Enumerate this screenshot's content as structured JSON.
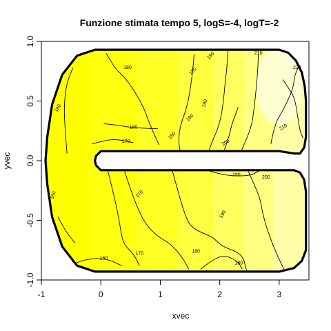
{
  "chart_data": {
    "type": "contour",
    "title": "Funzione stimata tempo 5, logS=-4, logT=-2",
    "xlabel": "xvec",
    "ylabel": "yvec",
    "xlim": [
      -1.0,
      3.5
    ],
    "ylim": [
      -1.0,
      1.0
    ],
    "x_ticks": [
      -1,
      0,
      1,
      2,
      3
    ],
    "x_tick_labels": [
      "-1",
      "0",
      "1",
      "2",
      "3"
    ],
    "y_ticks": [
      -1.0,
      -0.5,
      0.0,
      0.5,
      1.0
    ],
    "y_tick_labels": [
      "-1.0",
      "-0.5",
      "0.0",
      "0.5",
      "1.0"
    ],
    "colors": {
      "low": "#ffff00",
      "high": "#ffffe0",
      "boundary": "#000000",
      "contour": "#000000"
    },
    "fill_bands": [
      {
        "x_from": -1.0,
        "x_to": -0.2,
        "color": "#ffff00"
      },
      {
        "x_from": -0.2,
        "x_to": 0.6,
        "color": "#ffff10"
      },
      {
        "x_from": 0.6,
        "x_to": 1.3,
        "color": "#ffff26"
      },
      {
        "x_from": 1.3,
        "x_to": 1.9,
        "color": "#ffff40"
      },
      {
        "x_from": 1.9,
        "x_to": 2.4,
        "color": "#ffff60"
      },
      {
        "x_from": 2.4,
        "x_to": 2.9,
        "color": "#ffff82"
      },
      {
        "x_from": 2.9,
        "x_to": 3.5,
        "color": "#ffffa8"
      }
    ],
    "highlight_region": {
      "x_from": 2.6,
      "x_to": 3.4,
      "y_from": 0.3,
      "y_to": 0.95,
      "color": "#ffffd8"
    },
    "domain_boundary": [
      [
        -0.1,
        0.93
      ],
      [
        3.0,
        0.93
      ],
      [
        3.15,
        0.905
      ],
      [
        3.28,
        0.84
      ],
      [
        3.38,
        0.74
      ],
      [
        3.43,
        0.62
      ],
      [
        3.45,
        0.5
      ],
      [
        3.45,
        0.2
      ],
      [
        3.42,
        0.11
      ],
      [
        3.35,
        0.06
      ],
      [
        3.25,
        0.06
      ],
      [
        3.0,
        0.08
      ],
      [
        0.0,
        0.08
      ],
      [
        -0.08,
        0.04
      ],
      [
        -0.1,
        0.0
      ],
      [
        -0.08,
        -0.04
      ],
      [
        0.0,
        -0.08
      ],
      [
        3.0,
        -0.08
      ],
      [
        3.25,
        -0.08
      ],
      [
        3.35,
        -0.1
      ],
      [
        3.42,
        -0.16
      ],
      [
        3.45,
        -0.26
      ],
      [
        3.45,
        -0.75
      ],
      [
        3.38,
        -0.84
      ],
      [
        3.25,
        -0.9
      ],
      [
        3.0,
        -0.93
      ],
      [
        -0.1,
        -0.93
      ],
      [
        -0.4,
        -0.88
      ],
      [
        -0.65,
        -0.72
      ],
      [
        -0.82,
        -0.47
      ],
      [
        -0.9,
        -0.2
      ],
      [
        -0.93,
        0.0
      ],
      [
        -0.9,
        0.2
      ],
      [
        -0.82,
        0.47
      ],
      [
        -0.65,
        0.72
      ],
      [
        -0.4,
        0.88
      ],
      [
        -0.1,
        0.93
      ]
    ],
    "contours": [
      {
        "level": 160,
        "points": [
          [
            -0.57,
            0.06
          ],
          [
            -0.6,
            0.25
          ],
          [
            -0.62,
            0.46
          ],
          [
            -0.58,
            0.64
          ],
          [
            -0.47,
            0.78
          ]
        ]
      },
      {
        "level": 160,
        "points": [
          [
            -0.72,
            -0.47
          ],
          [
            -0.64,
            -0.55
          ],
          [
            -0.52,
            -0.64
          ],
          [
            -0.43,
            -0.69
          ]
        ]
      },
      {
        "level": 160,
        "points": [
          [
            -0.48,
            -0.87
          ],
          [
            -0.25,
            -0.82
          ],
          [
            0.1,
            -0.82
          ],
          [
            0.35,
            -0.88
          ]
        ]
      },
      {
        "level": 170,
        "points": [
          [
            -0.15,
            0.14
          ],
          [
            0.07,
            0.17
          ],
          [
            0.27,
            0.18
          ],
          [
            0.55,
            0.15
          ]
        ]
      },
      {
        "level": 170,
        "points": [
          [
            0.12,
            -0.09
          ],
          [
            0.2,
            -0.25
          ],
          [
            0.27,
            -0.4
          ],
          [
            0.33,
            -0.57
          ],
          [
            0.38,
            -0.7
          ],
          [
            0.55,
            -0.78
          ],
          [
            0.65,
            -0.88
          ]
        ]
      },
      {
        "level": 180,
        "points": [
          [
            0.09,
            0.9
          ],
          [
            0.24,
            0.77
          ],
          [
            0.36,
            0.72
          ],
          [
            0.52,
            0.62
          ],
          [
            0.72,
            0.45
          ],
          [
            0.8,
            0.33
          ],
          [
            0.98,
            0.13
          ]
        ]
      },
      {
        "level": 180,
        "points": [
          [
            0.05,
            0.31
          ],
          [
            0.26,
            0.3
          ],
          [
            0.48,
            0.28
          ],
          [
            0.78,
            0.27
          ],
          [
            0.96,
            0.27
          ]
        ]
      },
      {
        "level": 180,
        "points": [
          [
            0.4,
            -0.09
          ],
          [
            0.5,
            -0.24
          ],
          [
            0.62,
            -0.4
          ],
          [
            0.75,
            -0.53
          ],
          [
            0.94,
            -0.63
          ],
          [
            1.18,
            -0.7
          ],
          [
            1.37,
            -0.81
          ],
          [
            1.48,
            -0.91
          ]
        ]
      },
      {
        "level": 180,
        "points": [
          [
            1.68,
            -0.91
          ],
          [
            1.85,
            -0.84
          ],
          [
            2.07,
            -0.79
          ],
          [
            2.3,
            -0.84
          ],
          [
            2.38,
            -0.91
          ]
        ]
      },
      {
        "level": 190,
        "points": [
          [
            1.34,
            0.06
          ],
          [
            1.3,
            0.16
          ],
          [
            1.34,
            0.3
          ],
          [
            1.43,
            0.42
          ],
          [
            1.49,
            0.55
          ],
          [
            1.54,
            0.73
          ],
          [
            1.57,
            0.89
          ]
        ]
      },
      {
        "level": 190,
        "points": [
          [
            1.2,
            -0.08
          ],
          [
            1.31,
            -0.28
          ],
          [
            1.4,
            -0.43
          ],
          [
            1.5,
            -0.55
          ],
          [
            1.72,
            -0.61
          ],
          [
            1.88,
            -0.64
          ],
          [
            2.04,
            -0.72
          ],
          [
            2.38,
            -0.78
          ],
          [
            2.45,
            -0.92
          ]
        ]
      },
      {
        "level": 190,
        "points": [
          [
            1.78,
            -0.08
          ],
          [
            2.05,
            -0.12
          ],
          [
            2.34,
            -0.13
          ],
          [
            2.54,
            -0.12
          ],
          [
            2.68,
            -0.08
          ]
        ]
      },
      {
        "level": 200,
        "points": [
          [
            1.8,
            0.06
          ],
          [
            1.88,
            0.17
          ],
          [
            1.98,
            0.28
          ],
          [
            2.05,
            0.44
          ],
          [
            2.08,
            0.6
          ],
          [
            2.12,
            0.78
          ],
          [
            2.14,
            0.92
          ]
        ]
      },
      {
        "level": 200,
        "points": [
          [
            2.07,
            0.08
          ],
          [
            2.15,
            0.19
          ],
          [
            2.2,
            0.3
          ],
          [
            2.26,
            0.38
          ],
          [
            2.31,
            0.45
          ]
        ]
      },
      {
        "level": 200,
        "points": [
          [
            2.48,
            -0.09
          ],
          [
            2.59,
            -0.21
          ],
          [
            2.68,
            -0.32
          ],
          [
            2.72,
            -0.44
          ],
          [
            2.8,
            -0.58
          ],
          [
            2.92,
            -0.74
          ],
          [
            3.03,
            -0.86
          ],
          [
            3.1,
            -0.93
          ]
        ]
      },
      {
        "level": 210,
        "points": [
          [
            2.36,
            0.08
          ],
          [
            2.45,
            0.18
          ],
          [
            2.54,
            0.3
          ],
          [
            2.58,
            0.45
          ],
          [
            2.61,
            0.59
          ],
          [
            2.64,
            0.76
          ],
          [
            2.65,
            0.9
          ]
        ]
      },
      {
        "level": 210,
        "points": [
          [
            2.86,
            0.14
          ],
          [
            2.92,
            0.3
          ],
          [
            3.06,
            0.42
          ],
          [
            3.16,
            0.52
          ],
          [
            3.24,
            0.62
          ],
          [
            3.26,
            0.72
          ],
          [
            3.35,
            0.81
          ]
        ]
      },
      {
        "level": 220,
        "points": [
          [
            3.06,
            0.68
          ],
          [
            3.14,
            0.62
          ],
          [
            3.26,
            0.53
          ],
          [
            3.32,
            0.34
          ],
          [
            3.35,
            0.25
          ],
          [
            3.4,
            0.19
          ]
        ]
      }
    ],
    "labels": [
      {
        "text": "160",
        "x": -0.72,
        "y": 0.44,
        "angle": -60
      },
      {
        "text": "160",
        "x": -0.8,
        "y": -0.29,
        "angle": -70
      },
      {
        "text": "160",
        "x": 0.05,
        "y": -0.82,
        "angle": 0
      },
      {
        "text": "170",
        "x": 0.42,
        "y": 0.16,
        "angle": 0
      },
      {
        "text": "170",
        "x": 0.65,
        "y": -0.28,
        "angle": -45
      },
      {
        "text": "170",
        "x": 0.65,
        "y": -0.78,
        "angle": 0
      },
      {
        "text": "180",
        "x": 0.45,
        "y": 0.78,
        "angle": 0
      },
      {
        "text": "180",
        "x": 0.55,
        "y": 0.28,
        "angle": 0
      },
      {
        "text": "180",
        "x": 1.2,
        "y": 0.21,
        "angle": -45
      },
      {
        "text": "180",
        "x": 1.55,
        "y": 0.75,
        "angle": -45
      },
      {
        "text": "180",
        "x": 1.6,
        "y": -0.76,
        "angle": 0
      },
      {
        "text": "180",
        "x": 2.32,
        "y": -0.86,
        "angle": 0
      },
      {
        "text": "190",
        "x": 1.75,
        "y": 0.48,
        "angle": -70
      },
      {
        "text": "190",
        "x": 1.85,
        "y": 0.88,
        "angle": -45
      },
      {
        "text": "190",
        "x": 1.5,
        "y": 0.36,
        "angle": -45
      },
      {
        "text": "190",
        "x": 2.05,
        "y": -0.45,
        "angle": -60
      },
      {
        "text": "190",
        "x": 2.28,
        "y": -0.12,
        "angle": 0
      },
      {
        "text": "200",
        "x": 2.1,
        "y": 0.15,
        "angle": -30
      },
      {
        "text": "200",
        "x": 2.78,
        "y": -0.14,
        "angle": 0
      },
      {
        "text": "210",
        "x": 2.65,
        "y": 0.9,
        "angle": 0
      },
      {
        "text": "210",
        "x": 3.07,
        "y": 0.28,
        "angle": -30
      },
      {
        "text": "220",
        "x": 3.3,
        "y": 0.78,
        "angle": 0
      }
    ]
  }
}
